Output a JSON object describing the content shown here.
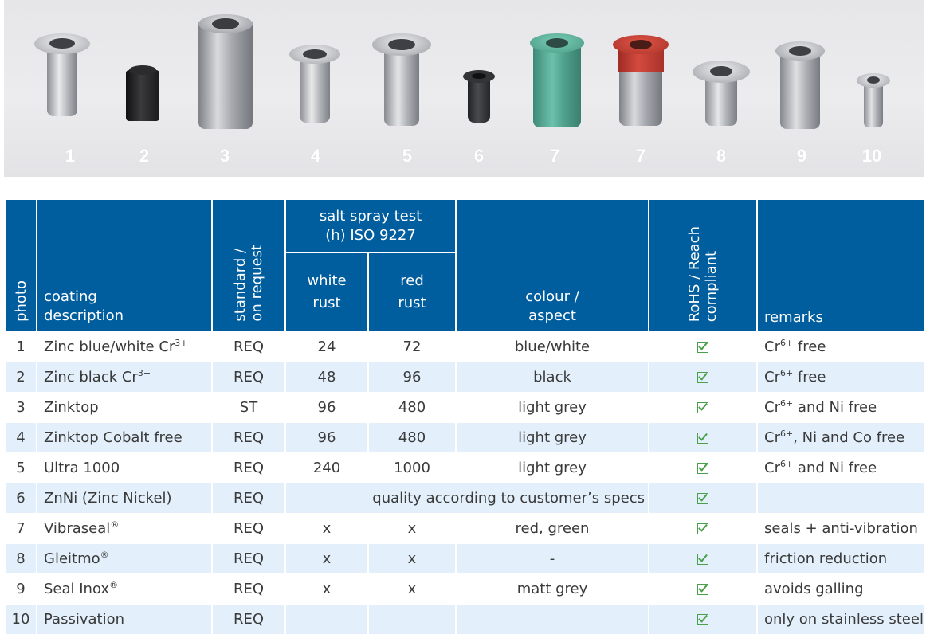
{
  "photo_numbers": [
    "1",
    "2",
    "3",
    "4",
    "5",
    "6",
    "7",
    "7",
    "8",
    "9",
    "10"
  ],
  "header": {
    "photo": "photo",
    "coating_description_1": "coating",
    "coating_description_2": "description",
    "standard_1": "standard /",
    "standard_2": "on request",
    "salt_spray_1": "salt spray test",
    "salt_spray_2": "(h) ISO 9227",
    "white_rust_1": "white",
    "white_rust_2": "rust",
    "red_rust_1": "red",
    "red_rust_2": "rust",
    "colour_1": "colour /",
    "colour_2": "aspect",
    "rohs_1": "RoHS / Reach",
    "rohs_2": "compliant",
    "remarks": "remarks"
  },
  "rows": [
    {
      "photo": "1",
      "desc": "Zinc blue/white Cr",
      "desc_sup": "3+",
      "std": "REQ",
      "white": "24",
      "red": "72",
      "colour": "blue/white",
      "remark_pre": "Cr",
      "remark_sup": "6+",
      "remark_post": " free"
    },
    {
      "photo": "2",
      "desc": "Zinc black Cr",
      "desc_sup": "3+",
      "std": "REQ",
      "white": "48",
      "red": "96",
      "colour": "black",
      "remark_pre": "Cr",
      "remark_sup": "6+",
      "remark_post": " free"
    },
    {
      "photo": "3",
      "desc": "Zinktop",
      "desc_sup": "",
      "std": "ST",
      "white": "96",
      "red": "480",
      "colour": "light grey",
      "remark_pre": "Cr",
      "remark_sup": "6+",
      "remark_post": " and Ni free"
    },
    {
      "photo": "4",
      "desc": "Zinktop Cobalt free",
      "desc_sup": "",
      "std": "REQ",
      "white": "96",
      "red": "480",
      "colour": "light grey",
      "remark_pre": "Cr",
      "remark_sup": "6+",
      "remark_post": ", Ni and Co free"
    },
    {
      "photo": "5",
      "desc": "Ultra 1000",
      "desc_sup": "",
      "std": "REQ",
      "white": "240",
      "red": "1000",
      "colour": "light grey",
      "remark_pre": "Cr",
      "remark_sup": "6+",
      "remark_post": " and Ni free"
    },
    {
      "photo": "6",
      "desc": "ZnNi (Zinc Nickel)",
      "desc_sup": "",
      "std": "REQ",
      "span_text": "quality according to customer’s specs",
      "remark_pre": "",
      "remark_sup": "",
      "remark_post": ""
    },
    {
      "photo": "7",
      "desc": "Vibraseal",
      "desc_sup": "®",
      "std": "REQ",
      "white": "x",
      "red": "x",
      "colour": "red, green",
      "remark_pre": "seals + anti-vibration",
      "remark_sup": "",
      "remark_post": ""
    },
    {
      "photo": "8",
      "desc": "Gleitmo",
      "desc_sup": "®",
      "std": "REQ",
      "white": "x",
      "red": "x",
      "colour": "-",
      "remark_pre": "friction reduction",
      "remark_sup": "",
      "remark_post": ""
    },
    {
      "photo": "9",
      "desc": "Seal Inox",
      "desc_sup": "®",
      "std": "REQ",
      "white": "x",
      "red": "x",
      "colour": "matt grey",
      "remark_pre": "avoids galling",
      "remark_sup": "",
      "remark_post": ""
    },
    {
      "photo": "10",
      "desc": "Passivation",
      "desc_sup": "",
      "std": "REQ",
      "white": "",
      "red": "",
      "colour": "",
      "remark_pre": "only on stainless steel",
      "remark_sup": "",
      "remark_post": ""
    }
  ],
  "colors": {
    "header_bg": "#005d9e",
    "alt_row": "#e3f0fb",
    "check": "#4aa04a"
  },
  "icons": {
    "check": "checkbox-checked-icon"
  }
}
